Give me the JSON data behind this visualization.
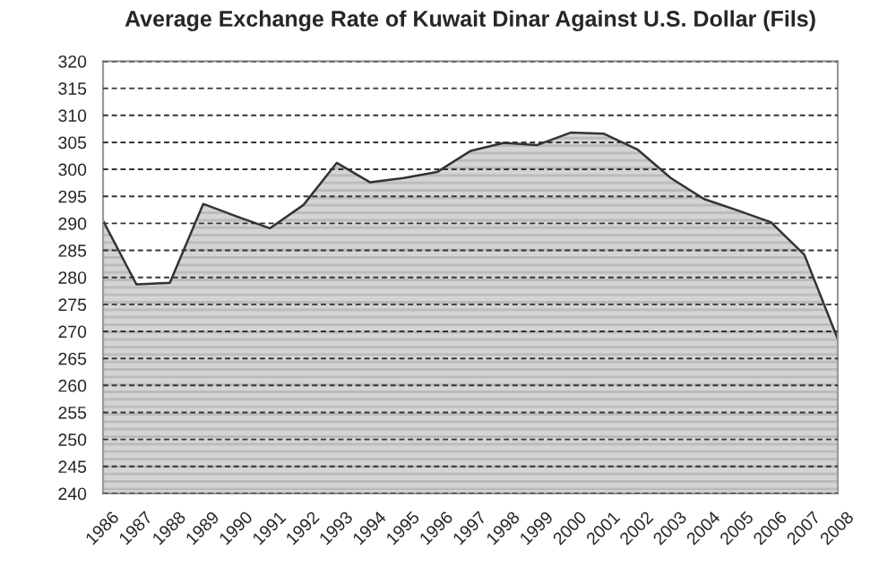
{
  "chart_data": {
    "type": "area",
    "title": "Average Exchange Rate of Kuwait Dinar Against U.S. Dollar (Fils)",
    "categories": [
      "1986",
      "1987",
      "1988",
      "1989",
      "1990",
      "1991",
      "1992",
      "1993",
      "1994",
      "1995",
      "1996",
      "1997",
      "1998",
      "1999",
      "2000",
      "2001",
      "2002",
      "2003",
      "2004",
      "2005",
      "2006",
      "2007",
      "2008"
    ],
    "series": [
      {
        "color": "#d4d4d4",
        "values": [
          290.5,
          278.7,
          279,
          293.6,
          291.3,
          289.1,
          293.4,
          301.2,
          297.6,
          298.4,
          299.5,
          303.4,
          304.9,
          304.5,
          306.8,
          306.6,
          303.7,
          298.4,
          294.5,
          292.4,
          290.2,
          284.2,
          268.6
        ]
      }
    ],
    "ylim": [
      240,
      320
    ],
    "yticks": [
      240,
      245,
      250,
      255,
      260,
      265,
      270,
      275,
      280,
      285,
      290,
      295,
      300,
      305,
      310,
      315,
      320
    ],
    "grid": "y",
    "legend": false
  }
}
